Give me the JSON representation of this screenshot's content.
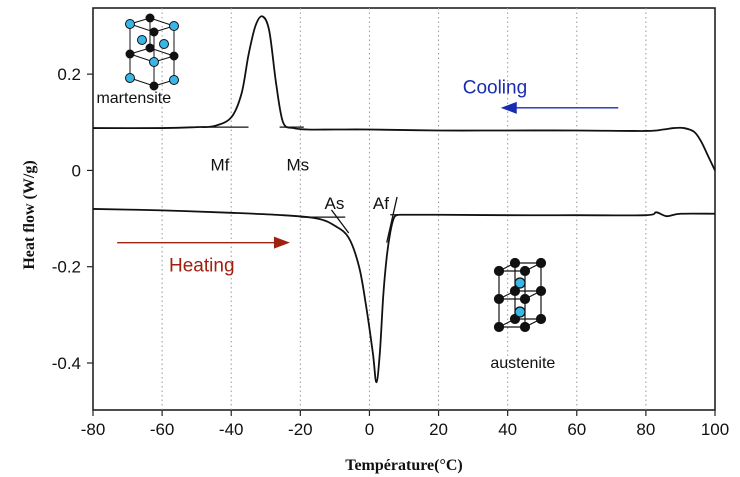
{
  "chart_data": {
    "type": "line",
    "xlabel": "Température(°C)",
    "ylabel": "Heat flow (W/g)",
    "xlim": [
      -80,
      100
    ],
    "ylim": [
      -0.5,
      0.35
    ],
    "x_ticks": [
      -80,
      -60,
      -40,
      -20,
      0,
      20,
      40,
      60,
      80,
      100
    ],
    "x_tick_labels": [
      "-80",
      "-60",
      "-40",
      "-20",
      "0",
      "20",
      "40",
      "60",
      "80",
      "100"
    ],
    "y_ticks": [
      0.2,
      0,
      -0.2,
      -0.4
    ],
    "y_tick_labels": [
      "0.2",
      "0",
      "-0.2",
      "-0.4"
    ],
    "grid": "vertical dotted",
    "series": [
      {
        "name": "Cooling",
        "x": [
          -80,
          -60,
          -50,
          -45,
          -40,
          -37,
          -35,
          -33,
          -31,
          -29,
          -27,
          -25,
          -22,
          -18,
          -10,
          0,
          20,
          40,
          60,
          80,
          85,
          88,
          91,
          94,
          96,
          98,
          100
        ],
        "y": [
          0.088,
          0.088,
          0.09,
          0.092,
          0.11,
          0.16,
          0.24,
          0.3,
          0.32,
          0.29,
          0.18,
          0.1,
          0.088,
          0.085,
          0.085,
          0.085,
          0.083,
          0.083,
          0.083,
          0.082,
          0.085,
          0.088,
          0.088,
          0.08,
          0.06,
          0.03,
          0.0
        ]
      },
      {
        "name": "Heating",
        "x": [
          -80,
          -60,
          -40,
          -25,
          -15,
          -10,
          -6,
          -3,
          -1,
          1,
          2,
          3,
          4,
          5,
          6,
          7,
          8,
          10,
          20,
          40,
          60,
          80,
          83,
          86,
          90,
          100
        ],
        "y": [
          -0.08,
          -0.083,
          -0.088,
          -0.093,
          -0.1,
          -0.115,
          -0.14,
          -0.2,
          -0.28,
          -0.38,
          -0.44,
          -0.38,
          -0.26,
          -0.18,
          -0.13,
          -0.1,
          -0.093,
          -0.092,
          -0.092,
          -0.093,
          -0.093,
          -0.093,
          -0.087,
          -0.095,
          -0.09,
          -0.09
        ]
      }
    ],
    "annotations": {
      "mf": "Mf",
      "ms": "Ms",
      "as": "As",
      "af": "Af",
      "cooling": "Cooling",
      "heating": "Heating",
      "martensite": "martensite",
      "austenite": "austenite"
    },
    "annotation_points": {
      "mf": {
        "x": -46,
        "y": -0.0
      },
      "ms": {
        "x": -24,
        "y": -0.0
      },
      "as": {
        "x": -13,
        "y": -0.08
      },
      "af": {
        "x": 1,
        "y": -0.08
      },
      "cooling": {
        "x": 27,
        "y": 0.16
      },
      "heating": {
        "x": -58,
        "y": -0.21
      },
      "martensite": {
        "x": -79,
        "y": 0.14
      },
      "austenite": {
        "x": 35,
        "y": -0.41
      }
    },
    "tangents": [
      {
        "x1": -46,
        "y1": 0.09,
        "x2": -35,
        "y2": 0.09
      },
      {
        "x1": -26,
        "y1": 0.09,
        "x2": -19,
        "y2": 0.09
      },
      {
        "x1": -20,
        "y1": -0.097,
        "x2": -7,
        "y2": -0.097
      },
      {
        "x1": -11,
        "y1": -0.082,
        "x2": -6,
        "y2": -0.13
      },
      {
        "x1": 6,
        "y1": -0.092,
        "x2": 11,
        "y2": -0.092
      },
      {
        "x1": 5,
        "y1": -0.15,
        "x2": 8,
        "y2": -0.055
      }
    ],
    "arrows": {
      "cooling": {
        "x1": 72,
        "y1": 0.13,
        "x2": 38,
        "y2": 0.13
      },
      "heating": {
        "x1": -73,
        "y1": -0.15,
        "x2": -23,
        "y2": -0.15
      }
    },
    "colors": {
      "cooling": "#1a2db0",
      "heating": "#a02010",
      "atom_blue": "#38b6e8",
      "atom_black": "#111111",
      "curve": "#111111"
    }
  }
}
